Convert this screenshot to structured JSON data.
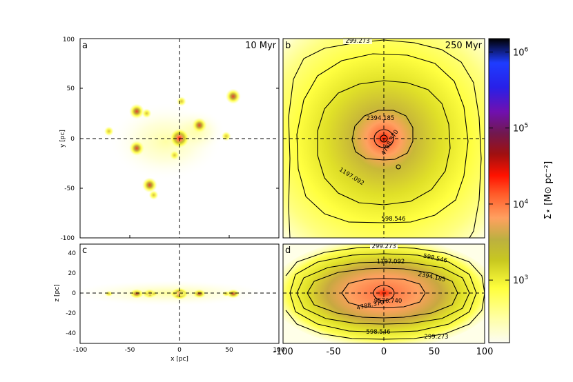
{
  "chart_data": [
    {
      "panel": "a",
      "type": "heatmap",
      "time_label": "10 Myr",
      "projection": "face-on",
      "xlabel": "x [pc]",
      "ylabel": "y [pc]",
      "xlim": [
        -100,
        100
      ],
      "ylim": [
        -100,
        100
      ],
      "x_ticks": [
        "-100",
        "-50",
        "0",
        "50",
        "100"
      ],
      "y_ticks": [
        "100",
        "50",
        "0",
        "-50",
        "-100"
      ],
      "clumps": [
        {
          "x": 0,
          "y": 0,
          "peak": "high"
        },
        {
          "x": -43,
          "y": 27,
          "peak": "mid"
        },
        {
          "x": -43,
          "y": -10,
          "peak": "mid"
        },
        {
          "x": -30,
          "y": -47,
          "peak": "mid"
        },
        {
          "x": 20,
          "y": 13,
          "peak": "mid"
        },
        {
          "x": 54,
          "y": 42,
          "peak": "mid"
        },
        {
          "x": -71,
          "y": 7,
          "peak": "low"
        },
        {
          "x": 47,
          "y": 2,
          "peak": "low"
        },
        {
          "x": -26,
          "y": -57,
          "peak": "low"
        },
        {
          "x": 2,
          "y": 37,
          "peak": "low"
        },
        {
          "x": -33,
          "y": 25,
          "peak": "low"
        },
        {
          "x": -5,
          "y": -17,
          "peak": "low"
        }
      ]
    },
    {
      "panel": "b",
      "type": "heatmap",
      "time_label": "250 Myr",
      "projection": "face-on",
      "xlim": [
        -100,
        100
      ],
      "ylim": [
        -100,
        100
      ],
      "contour_levels": [
        "299.273",
        "598.546",
        "1197.092",
        "2394.185",
        "4788.370"
      ]
    },
    {
      "panel": "c",
      "type": "heatmap",
      "projection": "edge-on",
      "xlabel": "x [pc]",
      "ylabel": "z [pc]",
      "xlim": [
        -100,
        100
      ],
      "ylim": [
        -50,
        50
      ],
      "x_ticks": [
        "-100",
        "-50",
        "0",
        "50",
        "100"
      ],
      "y_ticks": [
        "40",
        "20",
        "0",
        "-20",
        "-40"
      ]
    },
    {
      "panel": "d",
      "type": "heatmap",
      "projection": "edge-on",
      "xlim": [
        -100,
        100
      ],
      "ylim": [
        -50,
        50
      ],
      "x_ticks": [
        "-100",
        "-50",
        "0",
        "50",
        "100"
      ],
      "contour_levels": [
        "299.273",
        "598.546",
        "1197.092",
        "2394.185",
        "4788.370",
        "9576.740"
      ]
    }
  ],
  "colorbar": {
    "label": "Σ⋆ [M⊙ pc⁻²]",
    "scale": "log",
    "range": [
      150,
      1500000
    ],
    "ticks": [
      {
        "base": "10",
        "exp": "3",
        "value": 1000
      },
      {
        "base": "10",
        "exp": "4",
        "value": 10000
      },
      {
        "base": "10",
        "exp": "5",
        "value": 100000
      },
      {
        "base": "10",
        "exp": "6",
        "value": 1000000
      }
    ]
  },
  "colors": {
    "background": "#ffffff",
    "low": "#fbfbe0",
    "yellow": "#ffff40",
    "olive": "#bcbc24",
    "orange": "#ffa050",
    "red": "#ff2000",
    "crosshair": "#000000"
  }
}
